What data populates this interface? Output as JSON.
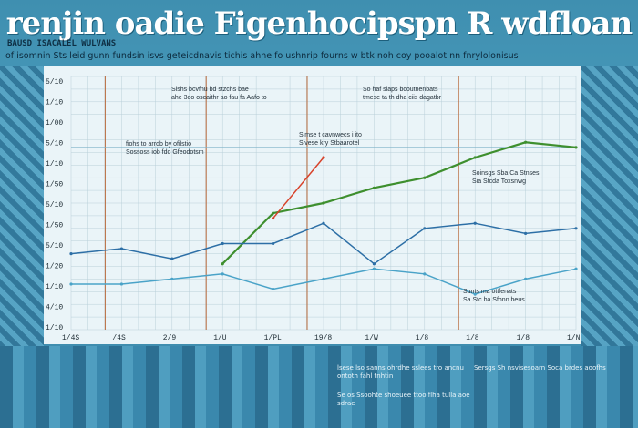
{
  "header": {
    "title": "renjin  oadie Figenhocipspn R wdfloan",
    "subtitle_tag": "BAUSD ISACALEL WULVANS",
    "subtitle": "of isomnin Sts leid gunn fundsin isvs geteicdnavis tichis ahne fo ushnrip fourns w btk noh coy pooalot nn fnrylolonisus"
  },
  "colors": {
    "green_series": "#3e8f2e",
    "red_series": "#d8422a",
    "blue_series": "#2d6fa6",
    "teal_series": "#4aa3c8",
    "grid": "#b9cfd9",
    "plot_bg": "#eaf4f8"
  },
  "chart_data": {
    "type": "line",
    "title": "",
    "xlabel": "",
    "ylabel": "",
    "y_tick_labels": [
      "5/10",
      "1/10",
      "1/00",
      "5/10",
      "1/10",
      "1/50",
      "5/10",
      "1/50",
      "5/10",
      "1/20",
      "1/10",
      "4/10",
      "1/10"
    ],
    "x_tick_labels": [
      "1/4S",
      "/4S",
      "2/9",
      "1/U",
      "1/PL",
      "19/8",
      "1/W",
      "1/8",
      "1/8",
      "1/8",
      "1/N"
    ],
    "x": [
      0,
      1,
      2,
      3,
      4,
      5,
      6,
      7,
      8,
      9,
      10
    ],
    "ylim": [
      0,
      100
    ],
    "grid": true,
    "series": [
      {
        "name": "",
        "color": "green",
        "values": [
          null,
          null,
          null,
          26,
          46,
          50,
          56,
          60,
          68,
          74,
          72
        ]
      },
      {
        "name": "",
        "color": "red",
        "values": [
          null,
          null,
          null,
          null,
          44,
          68,
          null,
          null,
          null,
          null,
          null
        ]
      },
      {
        "name": "",
        "color": "blue",
        "values": [
          30,
          32,
          28,
          34,
          34,
          42,
          26,
          40,
          42,
          38,
          40
        ]
      },
      {
        "name": "",
        "color": "teal",
        "values": [
          18,
          18,
          20,
          22,
          16,
          20,
          24,
          22,
          14,
          20,
          24
        ]
      }
    ]
  },
  "annotations": [
    {
      "line1": "Sishs bcvfnu bd stzchs bae",
      "line2": "ahe 3oo oscaithr ao fau fa Aafo to"
    },
    {
      "line1": "So haf siaps bcoutnenbats",
      "line2": "tmese ta th dha ciis dagatbr"
    },
    {
      "line1": "fiohs to arrdb by ofilstio",
      "line2": "Sossoss iob fdo Gfeodotsm"
    },
    {
      "line1": "Simse t cavnwecs i ito",
      "line2": "Sivese kry Stbaarotel"
    },
    {
      "line1": "Soinsgs Sba Ca Stnses",
      "line2": "Sia Stcda Toxsnwg"
    },
    {
      "line1": "Sunts ma ottfenats",
      "line2": "Sa Stc ba Sfhnn beus"
    }
  ],
  "bottom_notes": [
    "lsese lso sanns ohrdhe sslees tro ancnu ontoth fahl tnhtin",
    "Sersgs Sh nsvisesoarn Soca brdes aoofhs",
    "Se os Ssoohte shoeuee ttoo flha tulla aoe sdrae"
  ]
}
